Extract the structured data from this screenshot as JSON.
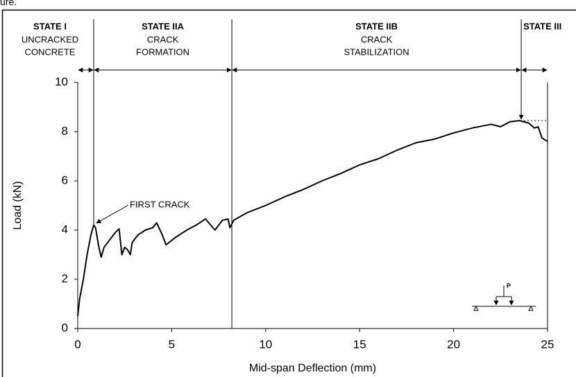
{
  "caption_fragment": "ure.",
  "chart_data": {
    "type": "line",
    "xlabel": "Mid-span Deflection (mm)",
    "ylabel": "Load (kN)",
    "xlim": [
      0,
      25
    ],
    "ylim": [
      0,
      10
    ],
    "xticks": [
      0,
      5,
      10,
      15,
      20,
      25
    ],
    "yticks": [
      0,
      2,
      4,
      6,
      8,
      10
    ],
    "x": [
      0,
      0.1,
      0.3,
      0.5,
      0.7,
      0.85,
      0.95,
      1.1,
      1.25,
      1.4,
      1.7,
      2.0,
      2.2,
      2.35,
      2.5,
      2.65,
      2.8,
      2.9,
      3.2,
      3.6,
      4.0,
      4.2,
      4.5,
      4.7,
      5.2,
      5.8,
      6.3,
      6.8,
      7.3,
      7.7,
      8.0,
      8.1,
      8.3,
      9,
      10,
      11,
      12,
      13,
      14,
      15,
      16,
      17,
      18,
      19,
      20,
      21,
      22,
      22.5,
      23,
      23.5,
      24,
      24.3,
      24.5,
      24.7,
      25
    ],
    "series": [
      {
        "color": "#000000",
        "values": [
          0.5,
          1.2,
          2.0,
          3.0,
          3.8,
          4.2,
          4.1,
          3.4,
          2.9,
          3.3,
          3.6,
          3.9,
          4.05,
          3.0,
          3.3,
          3.2,
          3.0,
          3.5,
          3.8,
          4.0,
          4.1,
          4.3,
          3.8,
          3.4,
          3.7,
          4.0,
          4.2,
          4.45,
          4.0,
          4.4,
          4.45,
          4.1,
          4.4,
          4.7,
          5.0,
          5.35,
          5.65,
          6.0,
          6.3,
          6.65,
          6.9,
          7.25,
          7.55,
          7.7,
          7.95,
          8.15,
          8.3,
          8.2,
          8.4,
          8.45,
          8.35,
          8.15,
          8.2,
          7.75,
          7.6
        ]
      }
    ],
    "state_boundaries": [
      0.85,
      8.2,
      23.6
    ],
    "states": [
      {
        "title": "STATE I",
        "lines": [
          "UNCRACKED",
          "CONCRETE"
        ]
      },
      {
        "title": "STATE IIA",
        "lines": [
          "CRACK",
          "FORMATION"
        ]
      },
      {
        "title": "STATE IIB",
        "lines": [
          "CRACK",
          "STABILIZATION"
        ]
      },
      {
        "title": "STATE III",
        "lines": []
      }
    ],
    "annotations": [
      {
        "text": "FIRST CRACK",
        "x": 0.85,
        "y": 4.2
      }
    ],
    "reference_line": {
      "y": 8.45,
      "x": [
        23.6,
        25
      ]
    },
    "beam_label": "P"
  }
}
